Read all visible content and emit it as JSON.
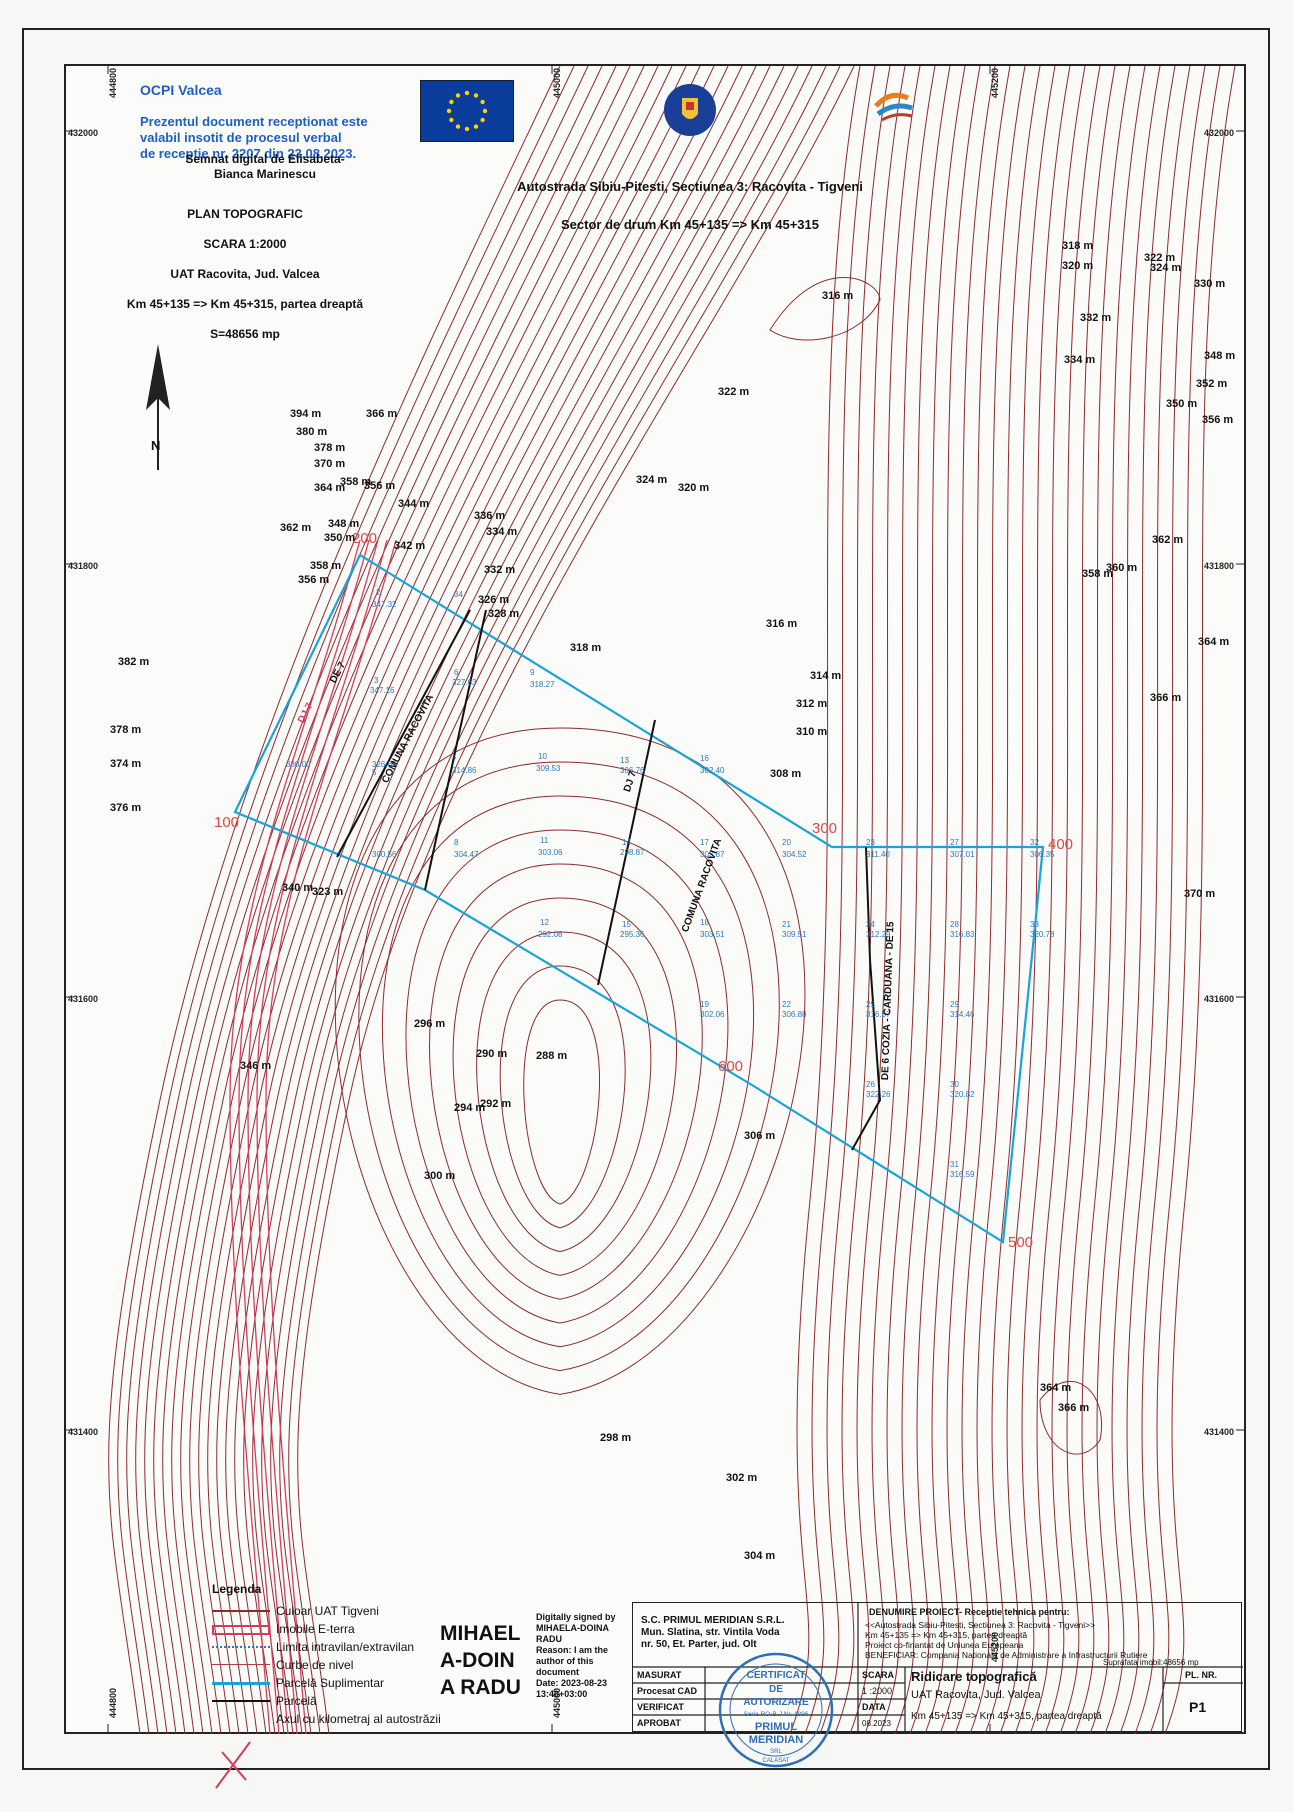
{
  "ocpi": {
    "title": "OCPI Valcea",
    "note": "Prezentul document receptionat este\nvalabil insotit de procesul verbal\nde receptie nr. 2207 din 23.08.2023."
  },
  "signature_ocpi": "Semnat digital de Elisabeta-\nBianca Marinescu",
  "plan": {
    "title": "PLAN TOPOGRAFIC",
    "scale": "SCARA 1:2000",
    "uat": "UAT Racovita, Jud. Valcea",
    "sector": "Km 45+135 => Km 45+315, partea dreaptă",
    "area": "S=48656 mp"
  },
  "project": {
    "line1": "Autostrada Sibiu-Pitesti, Sectiunea 3:  Racovita - Tigveni",
    "line2": "Sector de drum Km 45+135 => Km 45+315"
  },
  "north_label": "N",
  "colors": {
    "contour": "#8c2b2b",
    "uat": "#d63c5a",
    "parcel_sup": "#1aa3d6",
    "parcel": "#111111",
    "vertex": "#e04848",
    "ocpi_text": "#1f5fc4"
  },
  "grid": {
    "x_labels": [
      "444800",
      "445000",
      "445200",
      "444800",
      "445000",
      "445200"
    ],
    "y_labels": [
      "432000",
      "431800",
      "431600",
      "431400",
      "432000",
      "431800",
      "431600",
      "431400"
    ]
  },
  "vertices": [
    "100",
    "200",
    "300",
    "400",
    "500",
    "600"
  ],
  "contour_labels": [
    "318 m",
    "320 m",
    "322 m",
    "324 m",
    "330 m",
    "316 m",
    "332 m",
    "334 m",
    "348 m",
    "352 m",
    "350 m",
    "356 m",
    "322 m",
    "324 m",
    "320 m",
    "394 m",
    "366 m",
    "380 m",
    "378 m",
    "370 m",
    "364 m",
    "358 m",
    "356 m",
    "344 m",
    "362 m",
    "348 m",
    "350 m",
    "342 m",
    "336 m",
    "334 m",
    "332 m",
    "326 m",
    "328 m",
    "358 m",
    "356 m",
    "318 m",
    "316 m",
    "314 m",
    "312 m",
    "310 m",
    "308 m",
    "362 m",
    "358 m",
    "360 m",
    "364 m",
    "366 m",
    "382 m",
    "378 m",
    "374 m",
    "376 m",
    "340 m",
    "323 m",
    "370 m",
    "296 m",
    "290 m",
    "288 m",
    "346 m",
    "294 m",
    "292 m",
    "306 m",
    "300 m",
    "364 m",
    "366 m",
    "298 m",
    "302 m",
    "304 m"
  ],
  "parcel_markers": [
    "2",
    "3",
    "5",
    "6",
    "7",
    "8",
    "9",
    "10",
    "11",
    "12",
    "13",
    "14",
    "15",
    "16",
    "17",
    "18",
    "19",
    "20",
    "21",
    "22",
    "23",
    "24",
    "25",
    "26",
    "27",
    "28",
    "29",
    "30",
    "31",
    "32",
    "33",
    "34"
  ],
  "parcel_values": [
    "347.32",
    "347.16",
    "327.63",
    "318.27",
    "330.00",
    "326.65",
    "314.86",
    "309.53",
    "306.76",
    "302.40",
    "300.56",
    "304.47",
    "303.06",
    "298.87",
    "303.87",
    "304.52",
    "311.40",
    "307.01",
    "306.35",
    "292.08",
    "295.36",
    "303.51",
    "309.51",
    "312.29",
    "316.83",
    "320.78",
    "302.06",
    "306.88",
    "316.57",
    "314.46",
    "322.26",
    "320.82",
    "316.59"
  ],
  "road_labels": [
    "COMUNA  RACOVITA",
    "COMUNA  RACOVITA",
    "DE 7",
    "DJ 7",
    "DJ 7",
    "DE 6  COZIA - CARDUANA  - DE 15"
  ],
  "legend": {
    "title": "Legenda",
    "items": [
      "Culoar UAT Tigveni",
      "Imobile E-terra",
      "Limita intravilan/extravilan",
      "Curbe de nivel",
      "Parcelă Suplimentar",
      "Parcelă",
      "Axul cu kilometraj al autostrăzii"
    ]
  },
  "signer": {
    "name": "MIHAEL\nA-DOIN\nA RADU",
    "info": "Digitally signed by\nMIHAELA-DOINA\nRADU\nReason: I am the\nauthor of this\ndocument\nDate: 2023-08-23\n13:40+03:00"
  },
  "title_block": {
    "company": "S.C. PRIMUL MERIDIAN S.R.L.\nMun. Slatina, str. Vintila Voda\nnr. 50, Et. Parter, jud. Olt",
    "project_head": "DENUMIRE PROIECT- Receptie tehnica pentru:",
    "project_body": "<<Autostrada Sibiu-Pitesti, Sectiunea 3: Racovita - Tigveni>>\nKm 45+135 => Km 45+315, partea dreaptă\nProiect co-finantat de Uniunea Europeana\nBENEFICIAR: Compania Nationala de Administrare a Infrastructurii Rutiere",
    "area": "Suprafata imobil:48656 mp",
    "rows": [
      "MASURAT",
      "Procesat CAD",
      "VERIFICAT",
      "APROBAT"
    ],
    "scara_label": "SCARA",
    "scara_value": "1 :2000",
    "data_label": "DATA",
    "data_value": "08.2023",
    "title": "Ridicare topografică",
    "title2": "UAT Racovita, Jud. Valcea",
    "title3": "Km 45+135 => Km 45+315, partea dreaptă",
    "pl_label": "PL. NR.",
    "pl_value": "P1"
  },
  "stamp": {
    "line1": "CERTIFICAT",
    "line2": "DE",
    "line3": "AUTORIZARE",
    "line4": "Seria RO-B-J Nr. 1896",
    "line5": "PRIMUL",
    "line6": "MERIDIAN",
    "line7": "SRL",
    "line8": "CALASAT"
  }
}
